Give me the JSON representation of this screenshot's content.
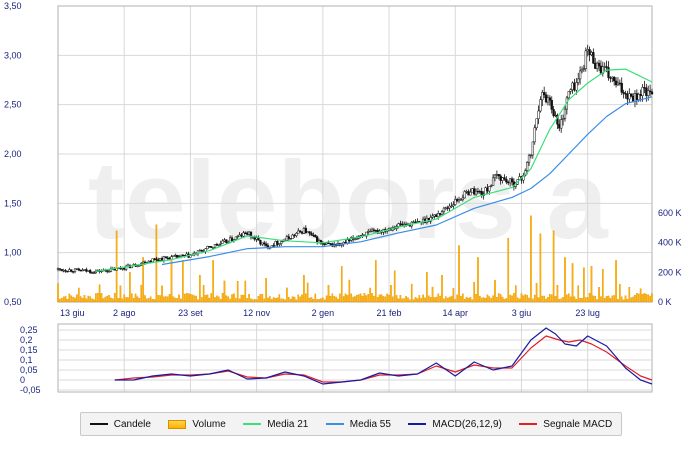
{
  "colors": {
    "candle": "#111111",
    "volume_fill": "#ffb300",
    "volume_stroke": "#e08a00",
    "ma21": "#39e07a",
    "ma55": "#3a8ee6",
    "macd": "#1a1aa0",
    "signal": "#e0202a",
    "grid": "#d8d8d8",
    "axis_text": "#1a237e"
  },
  "watermark": "telebors a",
  "legend": [
    {
      "label": "Candele",
      "kind": "line",
      "color": "#111111"
    },
    {
      "label": "Volume",
      "kind": "box",
      "color": "#ffb300"
    },
    {
      "label": "Media 21",
      "kind": "line",
      "color": "#39e07a"
    },
    {
      "label": "Media 55",
      "kind": "line",
      "color": "#3a8ee6"
    },
    {
      "label": "MACD(26,12,9)",
      "kind": "line",
      "color": "#1a1aa0"
    },
    {
      "label": "Segnale MACD",
      "kind": "line",
      "color": "#e0202a"
    }
  ],
  "chart_data": [
    {
      "type": "candlestick",
      "panel": "price",
      "ylim": [
        0.5,
        3.5
      ],
      "yticks": [
        "3,50",
        "3,00",
        "2,50",
        "2,00",
        "1,50",
        "1,00",
        "0,50"
      ],
      "ytick_values": [
        3.5,
        3.0,
        2.5,
        2.0,
        1.5,
        1.0,
        0.5
      ],
      "xticks": [
        "13 giu",
        "2 ago",
        "23 set",
        "12 nov",
        "2 gen",
        "21 feb",
        "14 apr",
        "3 giu",
        "23 lug"
      ],
      "xtick_positions": [
        0,
        35,
        70,
        105,
        140,
        175,
        210,
        245,
        280
      ],
      "x_range": [
        0,
        314
      ],
      "grid": true,
      "close_series": {
        "x": [
          0,
          10,
          20,
          30,
          40,
          50,
          60,
          70,
          80,
          90,
          100,
          110,
          120,
          130,
          140,
          150,
          160,
          170,
          180,
          190,
          200,
          210,
          218,
          225,
          232,
          240,
          245,
          250,
          255,
          260,
          265,
          270,
          275,
          280,
          285,
          290,
          295,
          300,
          305,
          310,
          314
        ],
        "y": [
          0.83,
          0.82,
          0.81,
          0.83,
          0.87,
          0.93,
          0.95,
          0.97,
          1.05,
          1.12,
          1.2,
          1.06,
          1.13,
          1.23,
          1.08,
          1.08,
          1.18,
          1.22,
          1.28,
          1.3,
          1.38,
          1.52,
          1.63,
          1.6,
          1.78,
          1.7,
          1.75,
          2.0,
          2.6,
          2.55,
          2.25,
          2.62,
          2.75,
          3.05,
          2.9,
          2.82,
          2.7,
          2.62,
          2.58,
          2.65,
          2.57
        ]
      },
      "ma21": {
        "x": [
          20,
          40,
          60,
          80,
          100,
          120,
          140,
          160,
          180,
          200,
          220,
          240,
          250,
          260,
          270,
          280,
          290,
          300,
          314
        ],
        "y": [
          0.81,
          0.87,
          0.93,
          1.02,
          1.17,
          1.12,
          1.1,
          1.16,
          1.26,
          1.34,
          1.56,
          1.66,
          1.85,
          2.25,
          2.55,
          2.72,
          2.85,
          2.86,
          2.73
        ]
      },
      "ma55": {
        "x": [
          55,
          80,
          100,
          120,
          140,
          160,
          180,
          200,
          220,
          240,
          250,
          260,
          270,
          280,
          290,
          300,
          314
        ],
        "y": [
          0.88,
          0.96,
          1.04,
          1.06,
          1.06,
          1.11,
          1.2,
          1.28,
          1.45,
          1.56,
          1.65,
          1.8,
          2.0,
          2.2,
          2.38,
          2.51,
          2.58
        ]
      }
    },
    {
      "type": "bar",
      "panel": "volume",
      "series_name": "Volume",
      "ylim": [
        0,
        700000
      ],
      "yticks": [
        "600 K",
        "400 K",
        "200 K",
        "0 K"
      ],
      "ytick_values": [
        600000,
        400000,
        200000,
        0
      ],
      "spikes": {
        "x": [
          31,
          38,
          45,
          52,
          60,
          66,
          75,
          82,
          95,
          110,
          130,
          150,
          168,
          178,
          195,
          203,
          212,
          222,
          238,
          250,
          255,
          262,
          268,
          272,
          278,
          282,
          288,
          295,
          302
        ],
        "y": [
          480000,
          200000,
          300000,
          520000,
          300000,
          280000,
          180000,
          280000,
          140000,
          160000,
          180000,
          240000,
          280000,
          210000,
          200000,
          180000,
          380000,
          300000,
          430000,
          580000,
          460000,
          480000,
          300000,
          260000,
          230000,
          240000,
          220000,
          280000,
          100000
        ]
      }
    },
    {
      "type": "line",
      "panel": "macd",
      "ylim": [
        -0.06,
        0.28
      ],
      "yticks": [
        "0,25",
        "0,2",
        "0,15",
        "0,1",
        "0,05",
        "0",
        "-0,05"
      ],
      "ytick_values": [
        0.25,
        0.2,
        0.15,
        0.1,
        0.05,
        0.0,
        -0.05
      ],
      "series": [
        {
          "name": "MACD(26,12,9)",
          "x": [
            30,
            40,
            50,
            60,
            70,
            80,
            90,
            100,
            110,
            120,
            130,
            140,
            150,
            160,
            170,
            180,
            190,
            200,
            210,
            220,
            230,
            240,
            250,
            258,
            263,
            268,
            274,
            280,
            290,
            300,
            308,
            314
          ],
          "y": [
            0.0,
            0.0,
            0.02,
            0.03,
            0.02,
            0.03,
            0.05,
            0.005,
            0.01,
            0.04,
            0.02,
            -0.02,
            -0.01,
            0.0,
            0.035,
            0.02,
            0.03,
            0.085,
            0.02,
            0.09,
            0.05,
            0.07,
            0.2,
            0.26,
            0.23,
            0.18,
            0.17,
            0.22,
            0.17,
            0.06,
            0.0,
            -0.02
          ]
        },
        {
          "name": "Segnale MACD",
          "x": [
            30,
            40,
            50,
            60,
            70,
            80,
            90,
            100,
            110,
            120,
            130,
            140,
            150,
            160,
            170,
            180,
            190,
            200,
            210,
            220,
            230,
            240,
            250,
            258,
            265,
            270,
            276,
            282,
            290,
            300,
            308,
            314
          ],
          "y": [
            0.0,
            0.01,
            0.015,
            0.025,
            0.025,
            0.03,
            0.045,
            0.015,
            0.01,
            0.03,
            0.025,
            -0.01,
            -0.01,
            0.0,
            0.025,
            0.025,
            0.03,
            0.07,
            0.04,
            0.075,
            0.06,
            0.06,
            0.16,
            0.22,
            0.2,
            0.19,
            0.2,
            0.18,
            0.14,
            0.07,
            0.02,
            0.0
          ]
        }
      ]
    }
  ]
}
